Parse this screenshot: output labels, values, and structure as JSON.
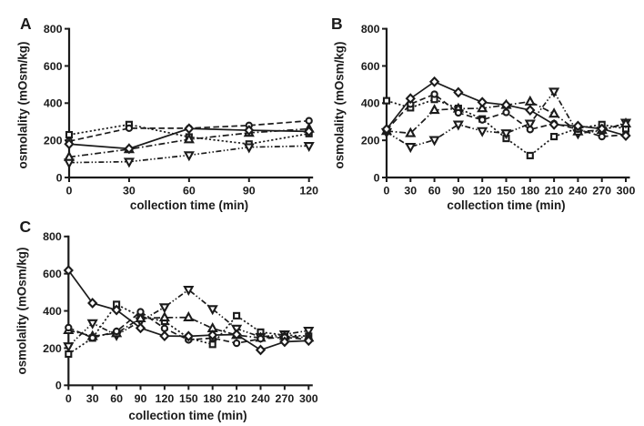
{
  "figure": {
    "background": "#ffffff",
    "ink_color": "#1b1b1b",
    "description": "Three-panel line figure of osmolality versus collection time"
  },
  "chart_data": [
    {
      "type": "line",
      "panel_label": "A",
      "xlabel": "collection time (min)",
      "ylabel": "osmolality (mOsm/kg)",
      "xlim": [
        0,
        120
      ],
      "ylim": [
        0,
        800
      ],
      "xticks": [
        0,
        30,
        60,
        90,
        120
      ],
      "yticks": [
        0,
        200,
        400,
        600,
        800
      ],
      "grid": false,
      "legend": "none",
      "x": [
        0,
        30,
        60,
        90,
        120
      ],
      "series": [
        {
          "name": "dotted-open-square",
          "marker": "square",
          "line": "dotted",
          "values": [
            230,
            285,
            218,
            180,
            236
          ]
        },
        {
          "name": "dashdotdot-open-triangle-down",
          "marker": "triangle-down",
          "line": "dashdotdot",
          "values": [
            80,
            85,
            120,
            163,
            170
          ]
        },
        {
          "name": "dashdot-open-triangle-up",
          "marker": "triangle-up",
          "line": "dashdot",
          "values": [
            110,
            152,
            205,
            240,
            262
          ]
        },
        {
          "name": "dashed-open-circle",
          "marker": "circle",
          "line": "dashed",
          "values": [
            195,
            265,
            265,
            280,
            305
          ]
        },
        {
          "name": "solid-diamond",
          "marker": "diamond",
          "line": "solid",
          "values": [
            180,
            155,
            263,
            254,
            248
          ]
        }
      ]
    },
    {
      "type": "line",
      "panel_label": "B",
      "xlabel": "collection time (min)",
      "ylabel": "osmolality (mOsm/kg)",
      "xlim": [
        0,
        300
      ],
      "ylim": [
        0,
        800
      ],
      "xticks": [
        0,
        30,
        60,
        90,
        120,
        150,
        180,
        210,
        240,
        270,
        300
      ],
      "yticks": [
        0,
        200,
        400,
        600,
        800
      ],
      "grid": false,
      "legend": "none",
      "x": [
        0,
        30,
        60,
        90,
        120,
        150,
        180,
        210,
        240,
        270,
        300
      ],
      "series": [
        {
          "name": "dotted-open-square",
          "marker": "square",
          "line": "dotted",
          "values": [
            413,
            375,
            420,
            372,
            315,
            210,
            118,
            220,
            265,
            285,
            262
          ]
        },
        {
          "name": "dashdotdot-open-triangle-down",
          "marker": "triangle-down",
          "line": "dashdotdot",
          "values": [
            244,
            165,
            202,
            285,
            250,
            238,
            290,
            462,
            237,
            252,
            295
          ]
        },
        {
          "name": "dashdot-open-triangle-up",
          "marker": "triangle-up",
          "line": "dashdot",
          "values": [
            250,
            238,
            363,
            370,
            372,
            390,
            408,
            343,
            247,
            255,
            290
          ]
        },
        {
          "name": "dashed-open-circle",
          "marker": "circle",
          "line": "dashed",
          "values": [
            255,
            395,
            448,
            348,
            310,
            350,
            258,
            290,
            260,
            220,
            230
          ]
        },
        {
          "name": "solid-diamond",
          "marker": "diamond",
          "line": "solid",
          "values": [
            260,
            425,
            515,
            458,
            405,
            390,
            362,
            285,
            277,
            262,
            225
          ]
        }
      ]
    },
    {
      "type": "line",
      "panel_label": "C",
      "xlabel": "collection time (min)",
      "ylabel": "osmolality (mOsm/kg)",
      "xlim": [
        0,
        300
      ],
      "ylim": [
        0,
        800
      ],
      "xticks": [
        0,
        30,
        60,
        90,
        120,
        150,
        180,
        210,
        240,
        270,
        300
      ],
      "yticks": [
        0,
        200,
        400,
        600,
        800
      ],
      "grid": false,
      "legend": "none",
      "x": [
        0,
        30,
        60,
        90,
        120,
        150,
        180,
        210,
        240,
        270,
        300
      ],
      "series": [
        {
          "name": "dotted-open-square",
          "marker": "square",
          "line": "dotted",
          "values": [
            168,
            254,
            435,
            370,
            344,
            254,
            220,
            374,
            286,
            270,
            264
          ]
        },
        {
          "name": "dashdotdot-open-triangle-down",
          "marker": "triangle-down",
          "line": "dashdotdot",
          "values": [
            210,
            334,
            270,
            345,
            420,
            514,
            410,
            305,
            260,
            274,
            294
          ]
        },
        {
          "name": "dashdot-open-triangle-up",
          "marker": "triangle-up",
          "line": "dashdot",
          "values": [
            296,
            264,
            280,
            360,
            364,
            365,
            306,
            270,
            255,
            264,
            256
          ]
        },
        {
          "name": "dashed-open-circle",
          "marker": "circle",
          "line": "dashed",
          "values": [
            310,
            255,
            290,
            395,
            306,
            244,
            254,
            226,
            250,
            258,
            246
          ]
        },
        {
          "name": "solid-diamond",
          "marker": "diamond",
          "line": "solid",
          "values": [
            618,
            442,
            405,
            308,
            265,
            264,
            270,
            273,
            190,
            234,
            240
          ]
        }
      ]
    }
  ]
}
